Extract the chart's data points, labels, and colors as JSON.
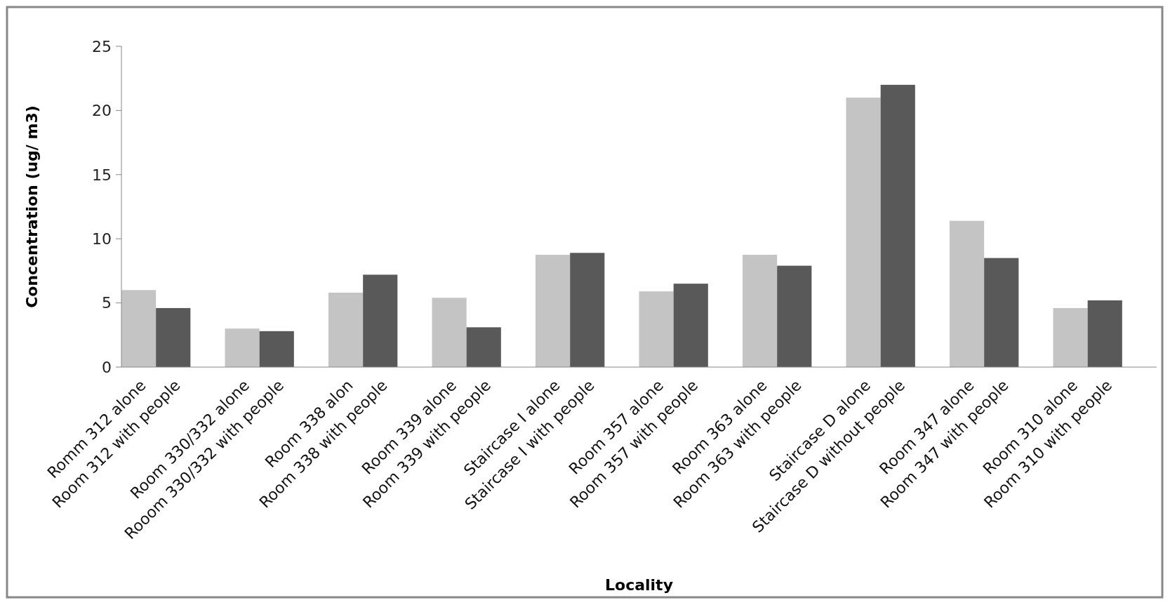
{
  "chart_data": {
    "type": "bar",
    "xlabel": "Locality",
    "ylabel": "Concentration (ug/ m3)",
    "categories": [
      "Romm 312 alone",
      "Room 312 with people",
      "Room 330/332 alone",
      "Rooom 330/332 with people",
      "Room 338 alon",
      "Room 338 with people",
      "Room 339 alone",
      "Room 339 with people",
      "Staircase I alone",
      "Staircase I with people",
      "Room 357 alone",
      "Room 357 with people",
      "Room 363 alone",
      "Room 363 with people",
      "Staircase D alone",
      "Staircase D without people",
      "Room 347 alone",
      "Room 347 with people",
      "Room 310 alone",
      "Room 310 with people"
    ],
    "values": [
      6.0,
      4.6,
      3.0,
      2.8,
      5.8,
      7.2,
      5.4,
      3.1,
      8.75,
      8.9,
      5.9,
      6.5,
      8.75,
      7.9,
      21.0,
      22.0,
      11.4,
      8.5,
      4.6,
      5.2
    ],
    "colors": [
      "#c4c4c4",
      "#595959",
      "#c4c4c4",
      "#595959",
      "#c4c4c4",
      "#595959",
      "#c4c4c4",
      "#595959",
      "#c4c4c4",
      "#595959",
      "#c4c4c4",
      "#595959",
      "#c4c4c4",
      "#595959",
      "#c4c4c4",
      "#595959",
      "#c4c4c4",
      "#595959",
      "#c4c4c4",
      "#595959"
    ],
    "ylim": [
      0,
      25
    ],
    "yticks": [
      0,
      5,
      10,
      15,
      20,
      25
    ],
    "grid": false
  }
}
